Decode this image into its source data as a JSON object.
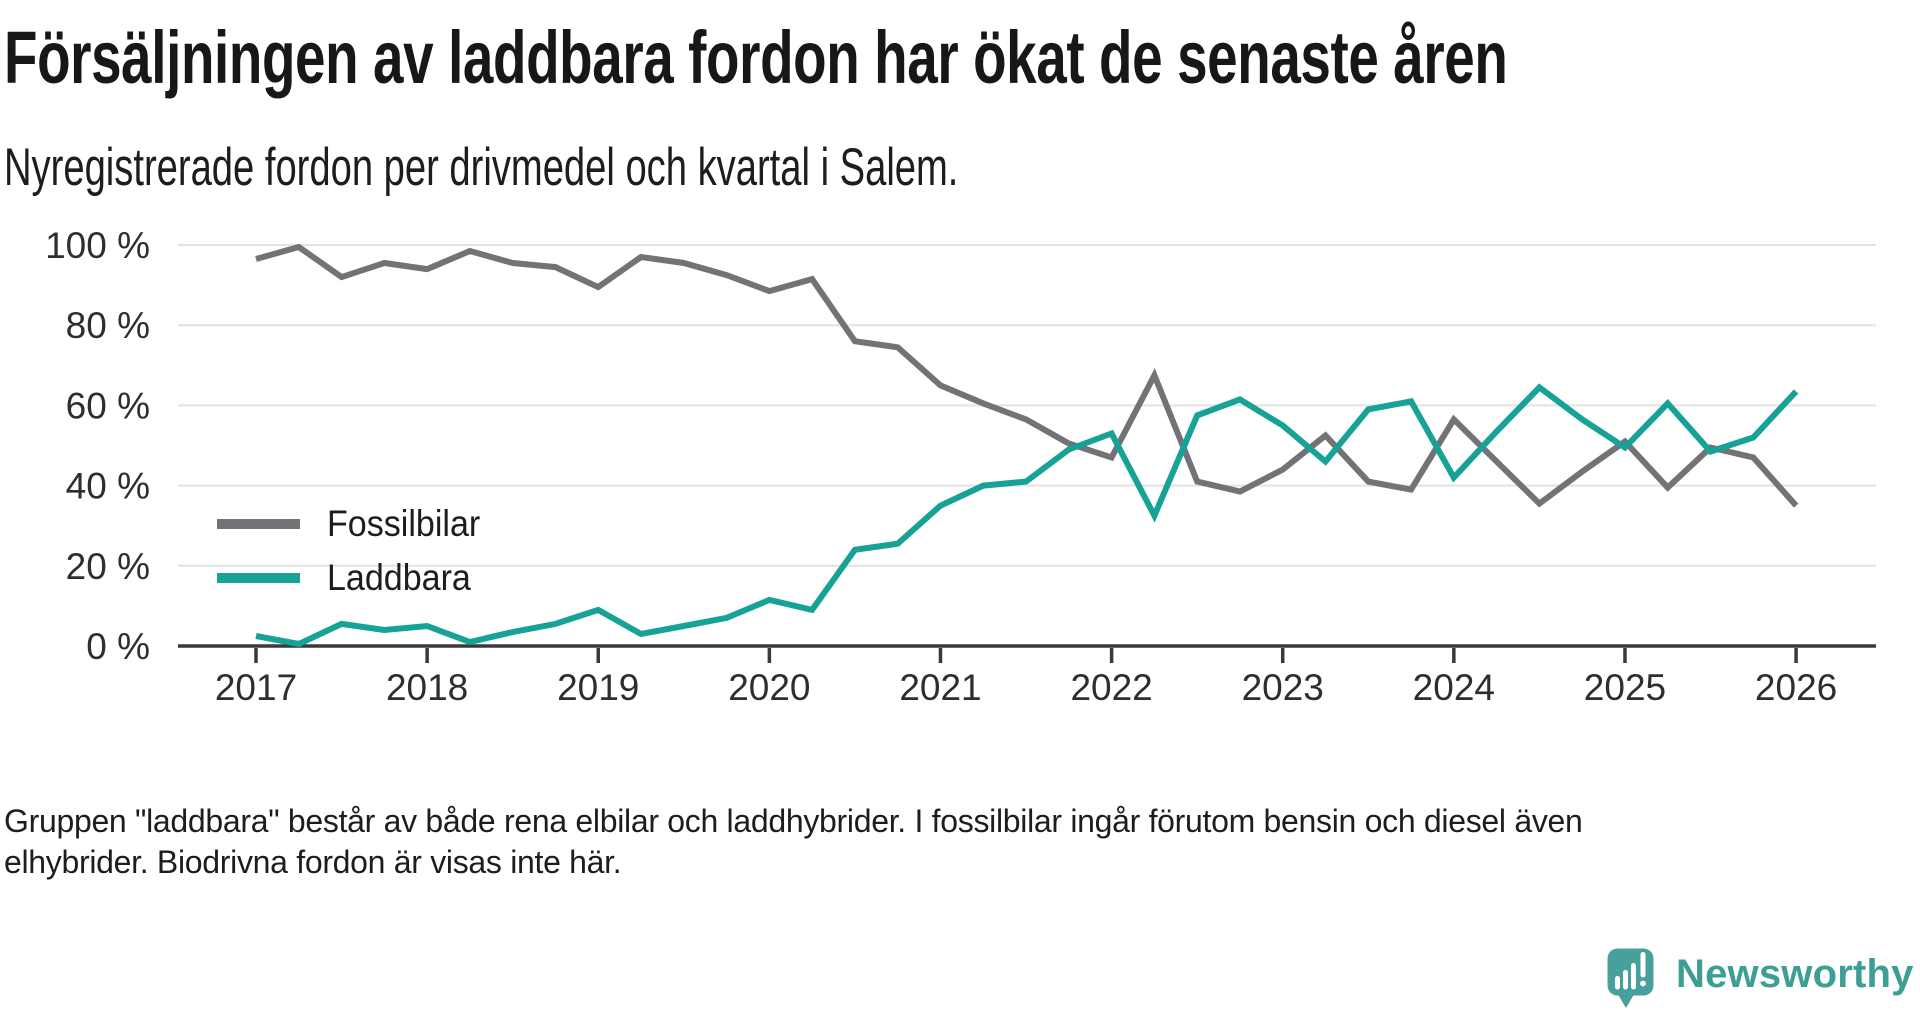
{
  "header": {
    "title": "Försäljningen av laddbara fordon har ökat de senaste åren",
    "subtitle": "Nyregistrerade fordon per drivmedel och kvartal i Salem."
  },
  "chart_data": {
    "type": "line",
    "unit": "%",
    "grid": "horizontal",
    "legend_position": "inside-left",
    "x_axis": {
      "start": "2017-Q1",
      "end": "2026-Q1",
      "interval": "quarter",
      "tick_labels": [
        "2017",
        "2018",
        "2019",
        "2020",
        "2021",
        "2022",
        "2023",
        "2024",
        "2025",
        "2026"
      ]
    },
    "y_axis": {
      "ticks": [
        0,
        20,
        40,
        60,
        80,
        100
      ],
      "tick_suffix": " %",
      "range": [
        0,
        100
      ]
    },
    "series": [
      {
        "name": "Fossilbilar",
        "color": "#727277",
        "values": [
          96.5,
          99.5,
          92,
          95.5,
          94,
          98.5,
          95.5,
          94.5,
          89.5,
          97,
          95.5,
          92.5,
          88.5,
          91.5,
          76,
          74.5,
          65,
          60.5,
          56.5,
          50.5,
          47,
          67.5,
          41,
          38.5,
          44,
          52.5,
          41,
          39,
          56.5,
          46,
          35.5,
          43.5,
          51,
          39.5,
          49.5,
          47,
          35
        ]
      },
      {
        "name": "Laddbara",
        "color": "#16a296",
        "values": [
          2.5,
          0.5,
          5.5,
          4,
          5,
          1,
          3.5,
          5.5,
          9,
          3,
          5,
          7,
          11.5,
          9,
          24,
          25.5,
          35,
          40,
          41,
          49,
          53,
          32.5,
          57.5,
          61.5,
          55,
          46,
          59,
          61,
          42,
          53.5,
          64.5,
          56.5,
          49.5,
          60.5,
          48.5,
          52,
          63.5
        ]
      }
    ]
  },
  "footnote": {
    "lines": [
      "Gruppen \"laddbara\" består av både rena elbilar och laddhybrider. I fossilbilar ingår förutom bensin och diesel även",
      "elhybrider. Biodrivna fordon är visas inte här."
    ]
  },
  "branding": {
    "name": "Newsworthy",
    "text_color": "#3d9e93",
    "icon_color": "#47a09c",
    "icon_glyph_color": "#ffffff",
    "icon": "speech-bubble-bar-chart-icon"
  }
}
